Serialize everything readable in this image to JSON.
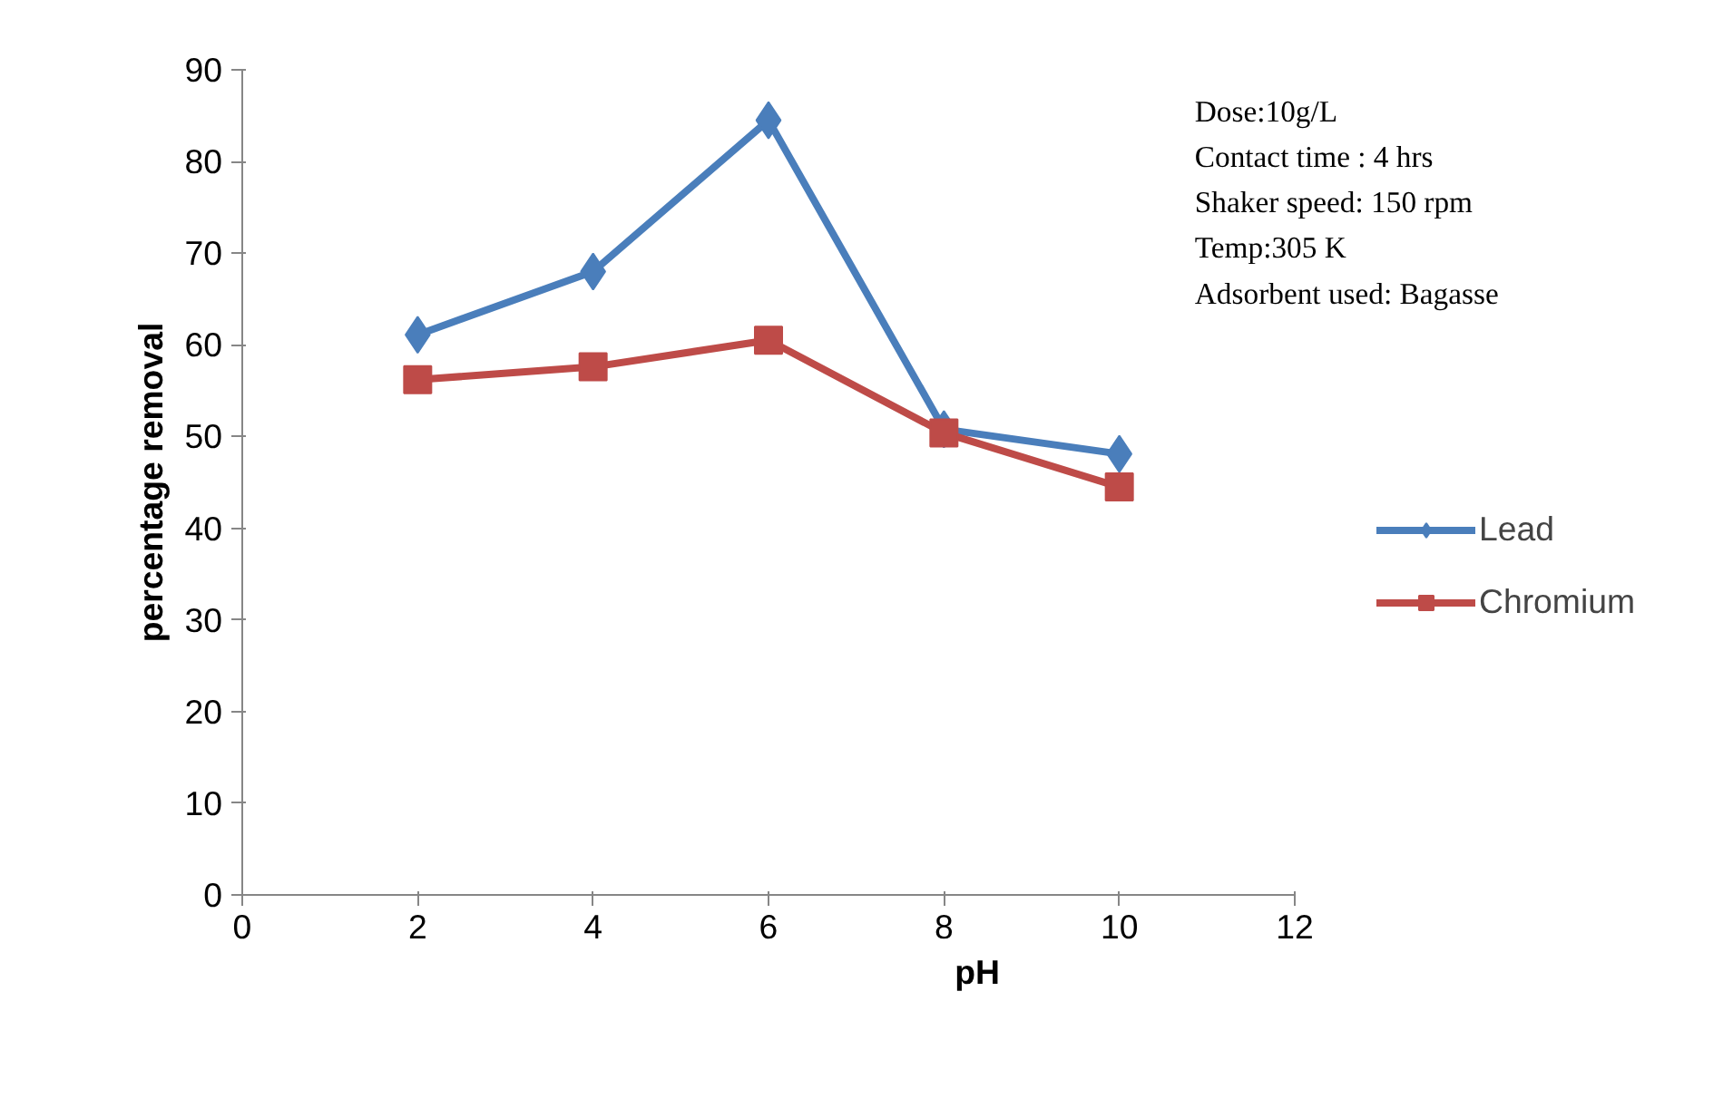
{
  "chart_data": {
    "type": "line",
    "xlabel": "pH",
    "ylabel": "percentage removal",
    "xlim": [
      0,
      12
    ],
    "xticks": [
      0,
      2,
      4,
      6,
      8,
      10,
      12
    ],
    "ylim": [
      0,
      90
    ],
    "yticks": [
      0,
      10,
      20,
      30,
      40,
      50,
      60,
      70,
      80,
      90
    ],
    "x": [
      2,
      4,
      6,
      8,
      10
    ],
    "series": [
      {
        "name": "Lead",
        "color": "#4a7ebb",
        "marker": "diamond",
        "values": [
          61.1,
          68.0,
          84.5,
          50.8,
          48.1
        ]
      },
      {
        "name": "Chromium",
        "color": "#be4b48",
        "marker": "square",
        "values": [
          56.2,
          57.6,
          60.5,
          50.4,
          44.5
        ]
      }
    ],
    "annotations": [
      "Dose:10g/L",
      "Contact time : 4 hrs",
      "Shaker speed: 150 rpm",
      "Temp:305 K",
      "Adsorbent used: Bagasse"
    ],
    "grid": false,
    "legend": "right",
    "line_style": "solid"
  }
}
